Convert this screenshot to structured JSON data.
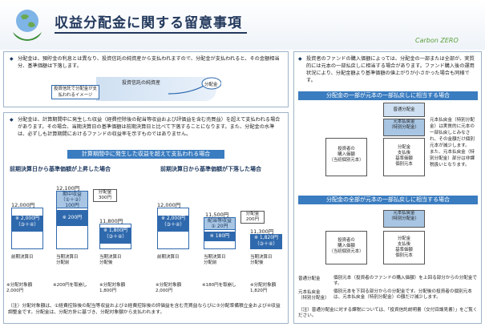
{
  "header": {
    "title": "収益分配金に関する留意事項",
    "logo_text": "Carbon ZERO"
  },
  "panel1": {
    "text": "分配金は、預貯金の利息とは異なり、投資信託の純資産から支払われますので、分配金が支払われると、その金額相当分、基準価額は下落します。",
    "figure": {
      "pool_label": "投資信託の純資産",
      "dist_label": "分配金",
      "image_label": "投資信託で分配金が支払われるイメージ"
    }
  },
  "panel2": {
    "text": "分配金は、計算期間中に発生した収益（経費控除後の配当等収益および評価益を含む売買益）を超えて支払われる場合があります。その場合、当期決算日の基準価額は前期決算日と比べて下落することになります。また、分配金の水準は、必ずしも計算期間におけるファンドの収益率を示すものではありません。",
    "banner": "計算期間中に発生した収益を超えて支払われる場合",
    "case_up": {
      "title": "前期決算日から基準価額が上昇した場合",
      "prev_value": "12,000円",
      "prev_inner": "※ 2,000円\n（③＋④）",
      "prev_label": "前期決算日",
      "prev_note": "※分配対象額\n2,000円",
      "peak_value": "12,100円",
      "income_label": "期中収益\n（①＋②）\n100円",
      "inner_200": "※ 200円",
      "dist_callout": "分配金\n300円",
      "after_value": "11,800円",
      "after_inner": "※ 1,800円\n（③＋④）",
      "after_label": "当期決算日\n分配後",
      "after_note": "※分配対象額\n1,800円",
      "curr_label": "当期決算日\n分配前",
      "curr_note": "※200円を取崩し"
    },
    "case_down": {
      "title": "前期決算日から基準価額が下落した場合",
      "prev_value": "12,000円",
      "prev_inner": "※ 2,000円\n（③＋④）",
      "prev_label": "前期決算日",
      "prev_note": "※分配対象額\n2,000円",
      "peak_value": "11,500円",
      "income_label": "配当等収益\n① 20円",
      "inner_180": "※ 180円",
      "dist_callout": "分配金\n200円",
      "after_value": "11,300円",
      "after_inner": "※ 1,820円\n（③＋④）",
      "after_label": "当期決算日\n分配後",
      "after_note": "※分配対象額\n1,820円",
      "curr_label": "当期決算日\n分配前",
      "curr_note": "※180円を取崩し"
    },
    "footnote": "（注）分配対象額は、①経費控除後の配当等収益および②経費控除後の評価益を含む売買益ならびに③分配準備積立金および④収益調整金です。分配金は、分配方針に基づき、分配対象額から支払われます。"
  },
  "panel3": {
    "text": "投資者のファンドの購入価額によっては、分配金の一部または全部が、実質的には元本の一部払戻しに相当する場合があります。ファンド購入後の運用状況により、分配金額より基準価額の値上がりが小さかった場合も同様です。",
    "partial": {
      "banner": "分配金の一部が元本の一部払戻しに相当する場合",
      "ordinary": "普通分配金",
      "refund": "元本払戻金\n（特別分配金）",
      "basis": "投資者の\n購入価額\n（当初個別元本）",
      "after": "分配金\n支払後\n基準価額\n個別元本",
      "note": "元本払戻金（特別分配金）は実質的に元本の一部払戻しとみなされ、その金額だけ個別元本が減少します。\nまた、元本払戻金（特別分配金）部分は非課税扱いとなります。"
    },
    "full": {
      "banner": "分配金の全部が元本の一部払戻しに相当する場合",
      "refund": "元本払戻金\n（特別分配金）",
      "basis": "投資者の\n購入価額\n（当初個別元本）",
      "after": "分配金\n支払後\n基準価額\n個別元本"
    },
    "defs": [
      {
        "term": "普通分配金",
        "desc": "個別元本（投資者のファンドの購入価額）を上回る部分からの分配金です。"
      },
      {
        "term": "元本払戻金\n（特別分配金）",
        "desc": "個別元本を下回る部分からの分配金です。分配後の投資者の個別元本は、元本払戻金（特別分配金）の額だけ減少します。"
      }
    ],
    "note": "（注）普通分配金に対する課税については、「投資信託説明書（交付目論見書）」をご覧ください。"
  }
}
